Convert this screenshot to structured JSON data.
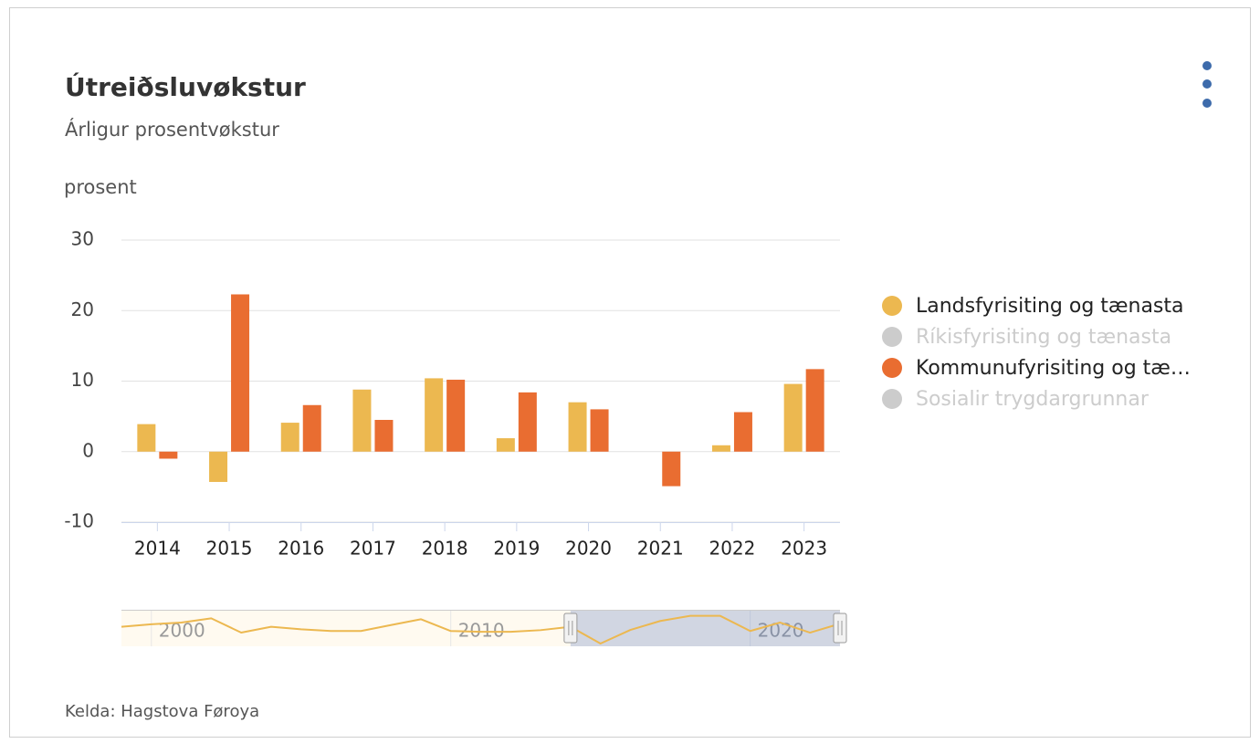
{
  "chart_data": {
    "type": "bar",
    "title": "Útreiðsluvøkstur",
    "subtitle": "Árligur prosentvøkstur",
    "y_label": "prosent",
    "source": "Kelda: Hagstova Føroya",
    "categories": [
      "2014",
      "2015",
      "2016",
      "2017",
      "2018",
      "2019",
      "2020",
      "2021",
      "2022",
      "2023"
    ],
    "series": [
      {
        "name": "Landsfyrisiting og tænasta",
        "color": "#ecb850",
        "visible": true,
        "values": [
          3.9,
          -4.3,
          4.1,
          8.8,
          10.4,
          1.9,
          7.0,
          null,
          0.9,
          9.6
        ]
      },
      {
        "name": "Ríkisfyrisiting og tænasta",
        "color": "#cccccc",
        "visible": false,
        "values": [
          null,
          null,
          null,
          null,
          null,
          null,
          null,
          null,
          null,
          null
        ]
      },
      {
        "name": "Kommunufyrisiting og tæ…",
        "color": "#e96d31",
        "visible": true,
        "values": [
          -1.0,
          22.3,
          6.6,
          4.5,
          10.2,
          8.4,
          6.0,
          -4.9,
          5.6,
          11.7
        ]
      },
      {
        "name": "Sosialir trygdargrunnar",
        "color": "#cccccc",
        "visible": false,
        "values": [
          null,
          null,
          null,
          null,
          null,
          null,
          null,
          null,
          null,
          null
        ]
      }
    ],
    "ylim": [
      -10,
      30
    ],
    "yticks": [
      -10,
      0,
      10,
      20,
      30
    ],
    "grid": true,
    "legend": "right",
    "navigator": {
      "color": "#ecb850",
      "x": [
        1999,
        2000,
        2001,
        2002,
        2003,
        2004,
        2005,
        2006,
        2007,
        2008,
        2009,
        2010,
        2011,
        2012,
        2013,
        2014,
        2015,
        2016,
        2017,
        2018,
        2019,
        2020,
        2021,
        2022,
        2023
      ],
      "values": [
        3.5,
        5.5,
        6.9,
        10.3,
        -1.2,
        3.5,
        1.5,
        0.1,
        0.1,
        4.9,
        9.6,
        0.1,
        -0.5,
        -0.5,
        0.8,
        3.5,
        -10,
        1,
        8.2,
        12.3,
        12.3,
        0.1,
        6.9,
        -1.2,
        6
      ],
      "xlim": [
        1999,
        2023
      ],
      "ylim": [
        -10,
        15
      ],
      "xticks": [
        2000,
        2010,
        2020
      ],
      "selected": [
        2014,
        2023
      ]
    }
  }
}
